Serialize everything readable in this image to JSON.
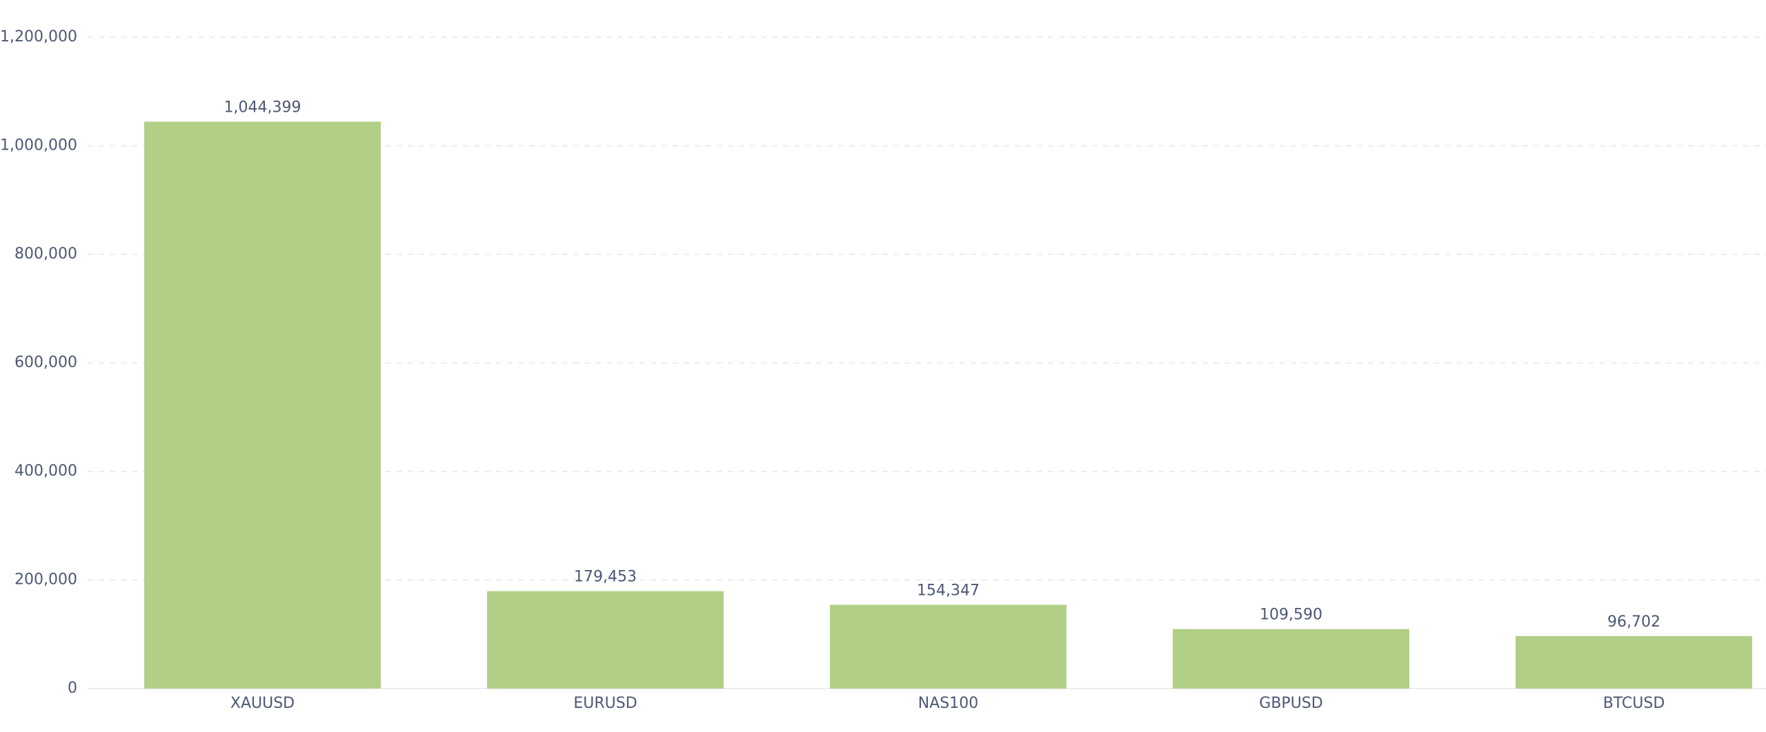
{
  "chart_data": {
    "type": "bar",
    "categories": [
      "XAUUSD",
      "EURUSD",
      "NAS100",
      "GBPUSD",
      "BTCUSD"
    ],
    "values": [
      1044399,
      179453,
      154347,
      109590,
      96702
    ],
    "value_labels": [
      "1,044,399",
      "179,453",
      "154,347",
      "109,590",
      "96,702"
    ],
    "color": "#b1cf86",
    "ylim": [
      0,
      1200000
    ],
    "yticks": [
      0,
      {
        "value": 200000,
        "label": "200,000"
      },
      {
        "value": 400000,
        "label": "400,000"
      },
      {
        "value": 600000,
        "label": "600,000"
      },
      {
        "value": 800000,
        "label": "800,000"
      },
      {
        "value": 1000000,
        "label": "1,000,000"
      },
      {
        "value": 1200000,
        "label": "1,200,000"
      }
    ],
    "grid": true
  }
}
